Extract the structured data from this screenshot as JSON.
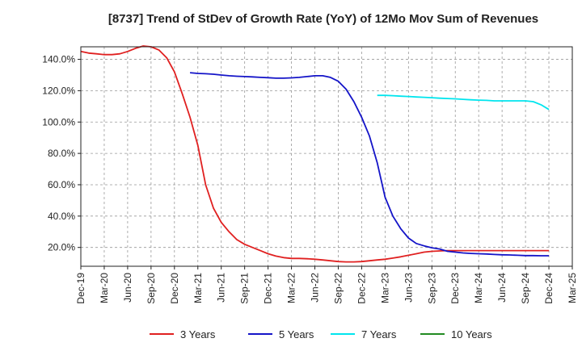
{
  "chart_data": {
    "type": "line",
    "title": "[8737]  Trend of StDev of Growth Rate (YoY) of 12Mo Mov Sum of Revenues",
    "xlabel": "",
    "ylabel": "",
    "ylim": [
      8,
      148
    ],
    "yticks": [
      20,
      40,
      60,
      80,
      100,
      120,
      140
    ],
    "ytick_labels": [
      "20.0%",
      "40.0%",
      "60.0%",
      "80.0%",
      "100.0%",
      "120.0%",
      "140.0%"
    ],
    "xlim": [
      0,
      63
    ],
    "xticks": [
      0,
      3,
      6,
      9,
      12,
      15,
      18,
      21,
      24,
      27,
      30,
      33,
      36,
      39,
      42,
      45,
      48,
      51,
      54,
      57,
      60,
      63
    ],
    "xtick_labels": [
      "Dec-19",
      "Mar-20",
      "Jun-20",
      "Sep-20",
      "Dec-20",
      "Mar-21",
      "Jun-21",
      "Sep-21",
      "Dec-21",
      "Mar-22",
      "Jun-22",
      "Sep-22",
      "Dec-22",
      "Mar-23",
      "Jun-23",
      "Sep-23",
      "Dec-23",
      "Mar-24",
      "Jun-24",
      "Sep-24",
      "Dec-24",
      "Mar-25"
    ],
    "grid": true,
    "legend_position": "bottom",
    "series": [
      {
        "name": "3 Years",
        "color": "#e02020",
        "x": [
          0,
          1,
          2,
          3,
          4,
          5,
          6,
          7,
          8,
          9,
          10,
          11,
          12,
          13,
          14,
          15,
          16,
          17,
          18,
          19,
          20,
          21,
          22,
          23,
          24,
          25,
          26,
          27,
          28,
          29,
          30,
          31,
          32,
          33,
          34,
          35,
          36,
          37,
          38,
          39,
          40,
          41,
          42,
          43,
          44,
          45,
          46,
          47,
          48,
          49,
          50,
          51,
          52,
          53,
          54,
          55,
          56,
          57,
          58,
          59,
          60
        ],
        "values": [
          145,
          144,
          143.5,
          143,
          143,
          143.5,
          145,
          147,
          148.5,
          148,
          146,
          141,
          132,
          118,
          103,
          85,
          60,
          45,
          36,
          30,
          25,
          22,
          20,
          18,
          16,
          14.5,
          13.5,
          13,
          13,
          12.8,
          12.5,
          12,
          11.5,
          11,
          10.8,
          10.8,
          11,
          11.5,
          12,
          12.5,
          13.2,
          14,
          15,
          16,
          17,
          17.5,
          17.8,
          18,
          18,
          18,
          18,
          18,
          18,
          18,
          18,
          18,
          18,
          18,
          18,
          18,
          18
        ]
      },
      {
        "name": "5 Years",
        "color": "#1414c8",
        "x": [
          14,
          15,
          16,
          17,
          18,
          19,
          20,
          21,
          22,
          23,
          24,
          25,
          26,
          27,
          28,
          29,
          30,
          31,
          32,
          33,
          34,
          35,
          36,
          37,
          38,
          39,
          40,
          41,
          42,
          43,
          44,
          45,
          46,
          47,
          48,
          49,
          50,
          51,
          52,
          53,
          54,
          55,
          56,
          57,
          58,
          59,
          60
        ],
        "values": [
          131.5,
          131,
          130.8,
          130.5,
          130,
          129.5,
          129.2,
          129,
          128.8,
          128.5,
          128.3,
          128,
          128,
          128.2,
          128.5,
          129,
          129.5,
          129.5,
          128.5,
          126,
          121,
          113,
          103,
          91,
          74,
          52,
          40,
          32,
          26,
          22.5,
          21,
          19.8,
          19,
          17.5,
          17,
          16.5,
          16.2,
          16,
          15.8,
          15.5,
          15.3,
          15.2,
          15,
          14.8,
          14.8,
          14.7,
          14.7
        ]
      },
      {
        "name": "7 Years",
        "color": "#00e5ee",
        "x": [
          38,
          39,
          40,
          41,
          42,
          43,
          44,
          45,
          46,
          47,
          48,
          49,
          50,
          51,
          52,
          53,
          54,
          55,
          56,
          57,
          58,
          59,
          60
        ],
        "values": [
          117,
          117,
          116.8,
          116.5,
          116.3,
          116,
          115.8,
          115.5,
          115.2,
          115,
          114.8,
          114.5,
          114.2,
          114,
          113.8,
          113.5,
          113.5,
          113.5,
          113.5,
          113.5,
          113,
          111,
          108
        ]
      },
      {
        "name": "10 Years",
        "color": "#228b22",
        "x": [],
        "values": []
      }
    ]
  }
}
